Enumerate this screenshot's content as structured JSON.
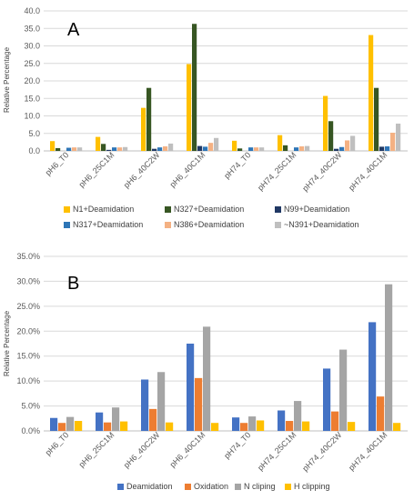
{
  "chart_data": [
    {
      "type": "bar",
      "panel_label": "A",
      "ylabel": "Relative Percentage",
      "ylim": [
        0,
        40
      ],
      "y_tick_labels": [
        "0.0",
        "5.0",
        "10.0",
        "15.0",
        "20.0",
        "25.0",
        "30.0",
        "35.0",
        "40.0"
      ],
      "grid": true,
      "legend_position": "bottom",
      "categories": [
        "pH6_T0",
        "pH6_25C1M",
        "pH6_40C2W",
        "pH6_40C1M",
        "pH74_T0",
        "pH74_25C1M",
        "pH74_40C2W",
        "pH74_40C1M"
      ],
      "series": [
        {
          "name": "N1+Deamidation",
          "color": "#FFC000",
          "values": [
            2.8,
            4.0,
            12.3,
            24.8,
            2.9,
            4.5,
            15.7,
            33.1
          ]
        },
        {
          "name": "N327+Deamidation",
          "color": "#375623",
          "values": [
            0.8,
            2.0,
            18.0,
            36.3,
            0.7,
            1.6,
            8.5,
            18.0
          ]
        },
        {
          "name": "N99+Deamidation",
          "color": "#203864",
          "values": [
            0.0,
            0.3,
            0.6,
            1.4,
            0.0,
            0.0,
            0.6,
            1.2
          ]
        },
        {
          "name": "N317+Deamidation",
          "color": "#2E75B6",
          "values": [
            0.9,
            1.0,
            1.0,
            1.2,
            1.0,
            1.0,
            1.1,
            1.3
          ]
        },
        {
          "name": "N386+Deamidation",
          "color": "#F4B183",
          "values": [
            1.0,
            1.0,
            1.3,
            2.3,
            1.0,
            1.3,
            3.0,
            5.2
          ]
        },
        {
          "name": "~N391+Deamidation",
          "color": "#BFBFBF",
          "values": [
            1.0,
            1.1,
            2.1,
            3.7,
            1.0,
            1.4,
            4.3,
            7.8
          ]
        }
      ]
    },
    {
      "type": "bar",
      "panel_label": "B",
      "ylabel": "Relative Percentage",
      "ylim": [
        0,
        35
      ],
      "y_tick_labels": [
        "0.0%",
        "5.0%",
        "10.0%",
        "15.0%",
        "20.0%",
        "25.0%",
        "30.0%",
        "35.0%"
      ],
      "grid": true,
      "legend_position": "bottom",
      "categories": [
        "pH6_T0",
        "pH6_25C1M",
        "pH6_40C2W",
        "pH6_40C1M",
        "pH74_T0",
        "pH74_25C1M",
        "pH74_40C2W",
        "pH74_40C1M"
      ],
      "series": [
        {
          "name": "Deamidation",
          "color": "#4472C4",
          "values": [
            2.6,
            3.7,
            10.3,
            17.5,
            2.7,
            4.1,
            12.5,
            21.8
          ]
        },
        {
          "name": "Oxidation",
          "color": "#ED7D31",
          "values": [
            1.6,
            1.7,
            4.4,
            10.6,
            1.6,
            2.0,
            3.9,
            6.9
          ]
        },
        {
          "name": "N cliping",
          "color": "#A5A5A5",
          "values": [
            2.8,
            4.7,
            11.8,
            20.9,
            2.9,
            6.0,
            16.3,
            29.4
          ]
        },
        {
          "name": "H clipping",
          "color": "#FFC000",
          "values": [
            2.0,
            1.9,
            1.7,
            1.6,
            2.1,
            1.9,
            1.8,
            1.6
          ]
        }
      ]
    }
  ]
}
